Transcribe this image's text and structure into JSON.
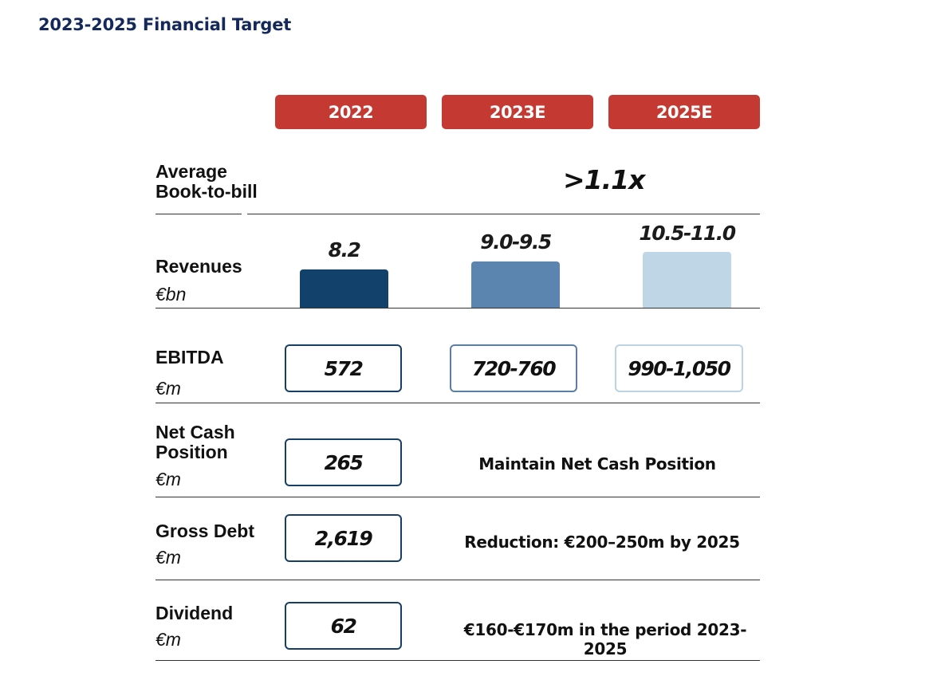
{
  "title": "2023-2025 Financial Target",
  "headers": [
    "2022",
    "2023E",
    "2025E"
  ],
  "book_to_bill": {
    "label_line1": "Average",
    "label_line2": "Book-to-bill",
    "value": ">1.1x"
  },
  "revenues": {
    "label": "Revenues",
    "unit": "€bn",
    "values": [
      "8.2",
      "9.0-9.5",
      "10.5-11.0"
    ],
    "bar_colors": [
      "#12426c",
      "#5b85af",
      "#bfd6e7"
    ]
  },
  "ebitda": {
    "label": "EBITDA",
    "unit": "€m",
    "values": [
      "572",
      "720-760",
      "990-1,050"
    ],
    "border_colors": [
      "#173f66",
      "#5b7ea4",
      "#bcd3e4"
    ]
  },
  "net_cash": {
    "label_line1": "Net Cash",
    "label_line2": "Position",
    "unit": "€m",
    "value_2022": "265",
    "target": "Maintain Net Cash Position"
  },
  "gross_debt": {
    "label": "Gross Debt",
    "unit": "€m",
    "value_2022": "2,619",
    "target": "Reduction: €200–250m by 2025"
  },
  "dividend": {
    "label": "Dividend",
    "unit": "€m",
    "value_2022": "62",
    "target": "€160-€170m in the period 2023-2025"
  }
}
